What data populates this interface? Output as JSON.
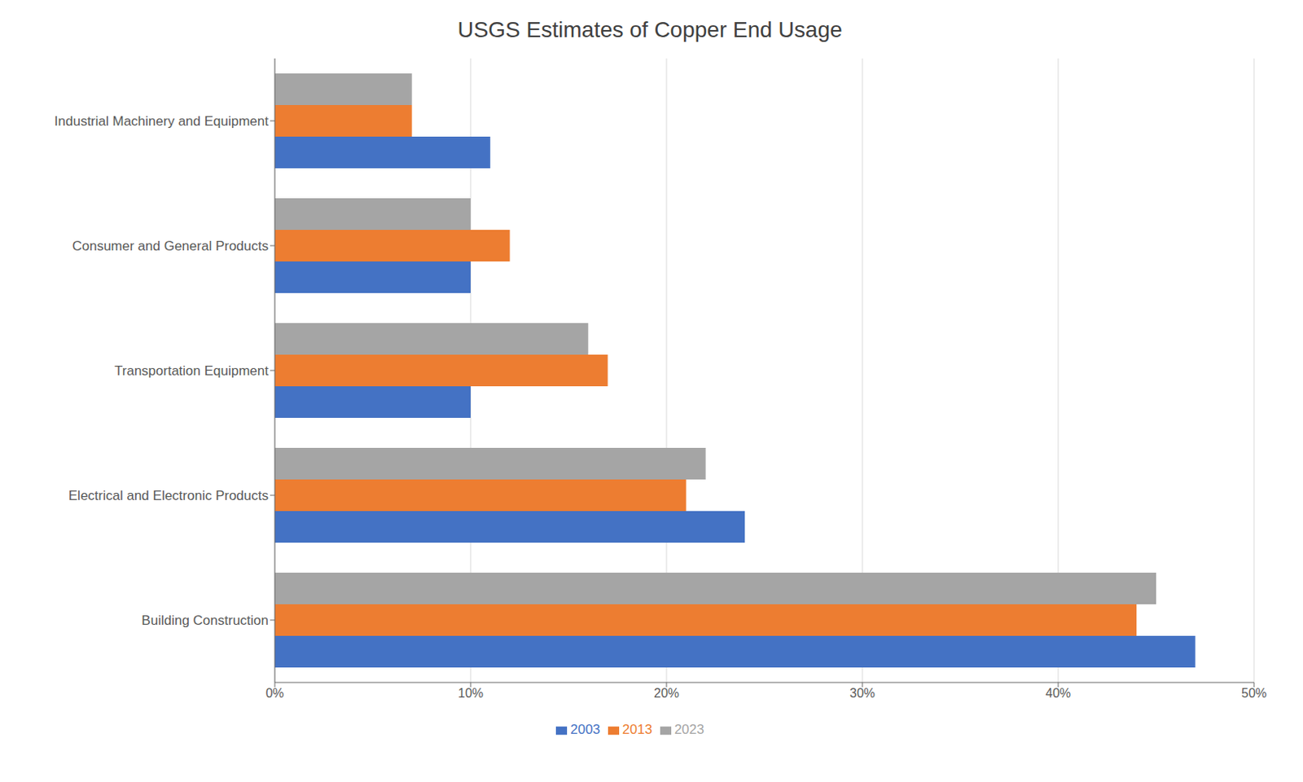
{
  "chart_data": {
    "type": "bar",
    "title": "USGS Estimates of Copper End Usage",
    "orientation": "horizontal",
    "categories": [
      "Building Construction",
      "Electrical and Electronic Products",
      "Transportation Equipment",
      "Consumer and General Products",
      "Industrial Machinery and Equipment"
    ],
    "series": [
      {
        "name": "2023",
        "color": "#A5A5A5",
        "values": [
          0.45,
          0.22,
          0.16,
          0.1,
          0.07
        ]
      },
      {
        "name": "2013",
        "color": "#ED7D31",
        "values": [
          0.44,
          0.21,
          0.17,
          0.12,
          0.07
        ]
      },
      {
        "name": "2003",
        "color": "#4472C4",
        "values": [
          0.47,
          0.24,
          0.1,
          0.1,
          0.11
        ]
      }
    ],
    "xlim": [
      0,
      0.5
    ],
    "xticks": [
      {
        "value": 0,
        "label": "0%"
      },
      {
        "value": 0.1,
        "label": "10%"
      },
      {
        "value": 0.2,
        "label": "20%"
      },
      {
        "value": 0.3,
        "label": "30%"
      },
      {
        "value": 0.4,
        "label": "40%"
      },
      {
        "value": 0.5,
        "label": "50%"
      }
    ],
    "grid": true,
    "legend": "bottom"
  }
}
